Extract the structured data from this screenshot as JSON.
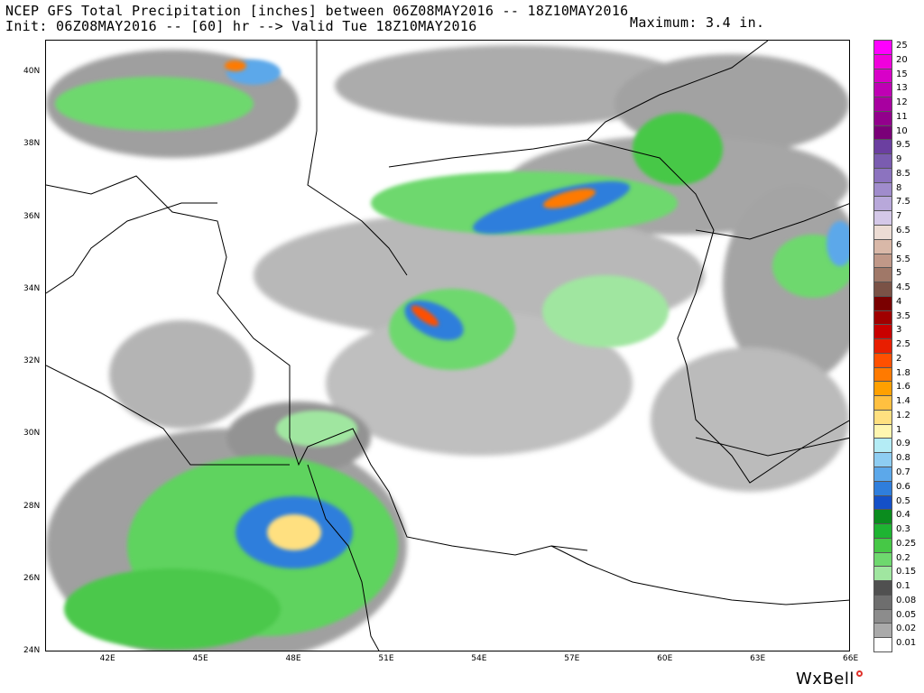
{
  "header": {
    "title": "NCEP GFS Total Precipitation [inches] between 06Z08MAY2016 -- 18Z10MAY2016",
    "subtitle": "Init: 06Z08MAY2016 -- [60] hr --> Valid Tue 18Z10MAY2016",
    "maximum": "Maximum: 3.4 in."
  },
  "map": {
    "lon_ticks": [
      "42E",
      "45E",
      "48E",
      "51E",
      "54E",
      "57E",
      "60E",
      "63E",
      "66E"
    ],
    "lat_ticks": [
      "40N",
      "38N",
      "36N",
      "34N",
      "32N",
      "30N",
      "28N",
      "26N",
      "24N"
    ],
    "lon_range": [
      40.0,
      66.0
    ],
    "lat_range": [
      24.0,
      40.9
    ]
  },
  "legend": {
    "items": [
      {
        "label": "25",
        "color": "#ff00ff"
      },
      {
        "label": "20",
        "color": "#f000dc"
      },
      {
        "label": "15",
        "color": "#d800c8"
      },
      {
        "label": "13",
        "color": "#bf00b4"
      },
      {
        "label": "12",
        "color": "#a800a0"
      },
      {
        "label": "11",
        "color": "#92008c"
      },
      {
        "label": "10",
        "color": "#7a0078"
      },
      {
        "label": "9.5",
        "color": "#6b3fa0"
      },
      {
        "label": "9",
        "color": "#7a5cb0"
      },
      {
        "label": "8.5",
        "color": "#8c73bf"
      },
      {
        "label": "8",
        "color": "#a08ccc"
      },
      {
        "label": "7.5",
        "color": "#b8a8da"
      },
      {
        "label": "7",
        "color": "#d4c8e8"
      },
      {
        "label": "6.5",
        "color": "#ecdcd4"
      },
      {
        "label": "6",
        "color": "#d9b8a8"
      },
      {
        "label": "5.5",
        "color": "#c09888"
      },
      {
        "label": "5",
        "color": "#a07868"
      },
      {
        "label": "4.5",
        "color": "#7a5246"
      },
      {
        "label": "4",
        "color": "#7a0000"
      },
      {
        "label": "3.5",
        "color": "#a00000"
      },
      {
        "label": "3",
        "color": "#c80000"
      },
      {
        "label": "2.5",
        "color": "#e81e00"
      },
      {
        "label": "2",
        "color": "#ff5000"
      },
      {
        "label": "1.8",
        "color": "#ff7a00"
      },
      {
        "label": "1.6",
        "color": "#ffa000"
      },
      {
        "label": "1.4",
        "color": "#ffc040"
      },
      {
        "label": "1.2",
        "color": "#ffe080"
      },
      {
        "label": "1",
        "color": "#fff6b0"
      },
      {
        "label": "0.9",
        "color": "#b4ecf5"
      },
      {
        "label": "0.8",
        "color": "#8ecdf2"
      },
      {
        "label": "0.7",
        "color": "#5ca8ea"
      },
      {
        "label": "0.6",
        "color": "#2f7edc"
      },
      {
        "label": "0.5",
        "color": "#1450c8"
      },
      {
        "label": "0.4",
        "color": "#0a8c1e"
      },
      {
        "label": "0.3",
        "color": "#1eb432"
      },
      {
        "label": "0.25",
        "color": "#46c846"
      },
      {
        "label": "0.2",
        "color": "#6ed86e"
      },
      {
        "label": "0.15",
        "color": "#a0e6a0"
      },
      {
        "label": "0.1",
        "color": "#505050"
      },
      {
        "label": "0.08",
        "color": "#6e6e6e"
      },
      {
        "label": "0.05",
        "color": "#8c8c8c"
      },
      {
        "label": "0.02",
        "color": "#aaaaaa"
      },
      {
        "label": "0.01",
        "color": "#ffffff"
      }
    ]
  },
  "logo": {
    "text": "WxBell",
    "accent": "#e0322b"
  }
}
